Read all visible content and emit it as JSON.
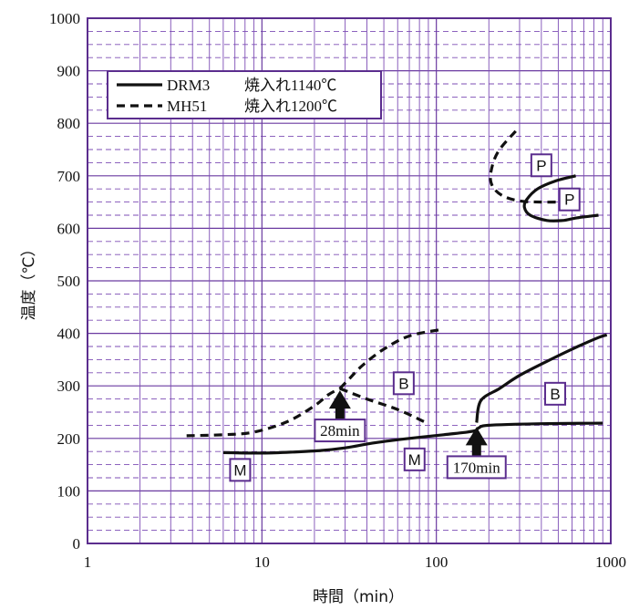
{
  "chart_data": {
    "type": "line",
    "xlabel": "時間（min）",
    "ylabel": "温度（℃）",
    "xscale": "log",
    "xlim": [
      1,
      1000
    ],
    "ylim": [
      0,
      1000
    ],
    "x_ticks": [
      "1",
      "10",
      "100",
      "1000"
    ],
    "y_ticks": [
      "0",
      "100",
      "200",
      "300",
      "400",
      "500",
      "600",
      "700",
      "800",
      "900",
      "1000"
    ],
    "grid": true,
    "colors": {
      "frame": "#5b2d8e",
      "grid_major": "#6a3aa0",
      "grid_minor": "#7d4db5",
      "curve": "#111111"
    },
    "legend": {
      "placement": "top-left",
      "entries": [
        {
          "name": "DRM3",
          "condition": "焼入れ1140℃",
          "style": "solid"
        },
        {
          "name": "MH51",
          "condition": "焼入れ1200℃",
          "style": "dashed"
        }
      ]
    },
    "series": [
      {
        "name": "DRM3",
        "style": "solid",
        "curves": [
          {
            "region": "P",
            "points": [
              [
                630,
                700
              ],
              [
                480,
                690
              ],
              [
                380,
                675
              ],
              [
                330,
                655
              ],
              [
                320,
                640
              ],
              [
                345,
                625
              ],
              [
                430,
                615
              ],
              [
                530,
                615
              ],
              [
                640,
                620
              ],
              [
                850,
                625
              ]
            ]
          },
          {
            "region": "B",
            "points": [
              [
                170,
                230
              ],
              [
                180,
                272
              ],
              [
                230,
                295
              ],
              [
                300,
                320
              ],
              [
                420,
                345
              ],
              [
                600,
                370
              ],
              [
                850,
                392
              ],
              [
                950,
                397
              ]
            ]
          },
          {
            "region": "M",
            "points": [
              [
                6,
                173
              ],
              [
                10,
                172
              ],
              [
                15,
                174
              ],
              [
                22,
                177
              ],
              [
                30,
                182
              ],
              [
                45,
                192
              ],
              [
                70,
                200
              ],
              [
                110,
                207
              ],
              [
                150,
                212
              ],
              [
                168,
                215
              ],
              [
                175,
                220
              ],
              [
                200,
                225
              ],
              [
                400,
                228
              ],
              [
                900,
                229
              ]
            ]
          }
        ]
      },
      {
        "name": "MH51",
        "style": "dashed",
        "curves": [
          {
            "region": "P",
            "points": [
              [
                285,
                785
              ],
              [
                225,
                745
              ],
              [
                205,
                705
              ],
              [
                210,
                680
              ],
              [
                240,
                662
              ],
              [
                300,
                652
              ],
              [
                400,
                650
              ],
              [
                520,
                650
              ]
            ]
          },
          {
            "region": "B",
            "points": [
              [
                28,
                295
              ],
              [
                32,
                315
              ],
              [
                38,
                340
              ],
              [
                50,
                370
              ],
              [
                70,
                395
              ],
              [
                110,
                408
              ]
            ]
          },
          {
            "region": "B-lower",
            "points": [
              [
                28,
                295
              ],
              [
                40,
                275
              ],
              [
                60,
                255
              ],
              [
                85,
                232
              ]
            ]
          },
          {
            "region": "M",
            "points": [
              [
                3.7,
                205
              ],
              [
                6,
                207
              ],
              [
                9,
                212
              ],
              [
                14,
                232
              ],
              [
                20,
                262
              ],
              [
                24,
                283
              ],
              [
                28,
                295
              ]
            ]
          }
        ]
      }
    ],
    "region_labels": [
      {
        "text": "P",
        "x": 400,
        "y": 720
      },
      {
        "text": "P",
        "x": 580,
        "y": 655
      },
      {
        "text": "B",
        "x": 65,
        "y": 305
      },
      {
        "text": "B",
        "x": 480,
        "y": 285
      },
      {
        "text": "M",
        "x": 7.5,
        "y": 140
      },
      {
        "text": "M",
        "x": 75,
        "y": 160
      }
    ],
    "annotations": [
      {
        "text": "28min",
        "x": 28,
        "y": 295
      },
      {
        "text": "170min",
        "x": 170,
        "y": 225
      }
    ]
  }
}
